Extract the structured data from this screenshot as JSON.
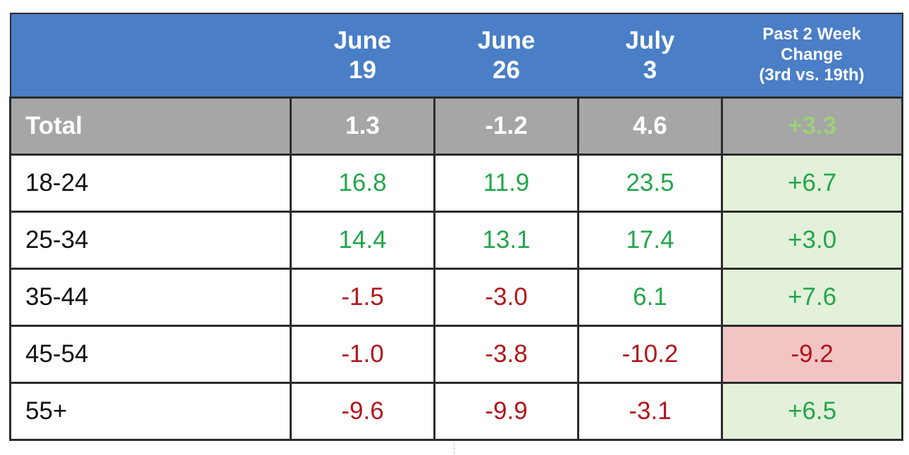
{
  "chart_data": {
    "type": "table",
    "columns": [
      "",
      "June 19",
      "June 26",
      "July 3",
      "Past 2 Week Change (3rd vs. 19th)"
    ],
    "header": {
      "col1": [
        "June",
        "19"
      ],
      "col2": [
        "June",
        "26"
      ],
      "col3": [
        "July",
        "3"
      ],
      "col4": [
        "Past 2 Week",
        "Change",
        "(3rd vs. 19th)"
      ]
    },
    "rows": [
      {
        "label": "Total",
        "values": [
          "1.3",
          "-1.2",
          "4.6"
        ],
        "change": "+3.3"
      },
      {
        "label": "18-24",
        "values": [
          "16.8",
          "11.9",
          "23.5"
        ],
        "change": "+6.7"
      },
      {
        "label": "25-34",
        "values": [
          "14.4",
          "13.1",
          "17.4"
        ],
        "change": "+3.0"
      },
      {
        "label": "35-44",
        "values": [
          "-1.5",
          "-3.0",
          "6.1"
        ],
        "change": "+7.6"
      },
      {
        "label": "45-54",
        "values": [
          "-1.0",
          "-3.8",
          "-10.2"
        ],
        "change": "-9.2"
      },
      {
        "label": "55+",
        "values": [
          "-9.6",
          "-9.9",
          "-3.1"
        ],
        "change": "+6.5"
      }
    ]
  },
  "colors": {
    "header_bg": "#4a7ec6",
    "total_bg": "#a6a6a6",
    "positive_text": "#22a64a",
    "negative_text": "#b3151c",
    "positive_cell_bg": "#e3f0da",
    "negative_cell_bg": "#f2c4c4"
  }
}
